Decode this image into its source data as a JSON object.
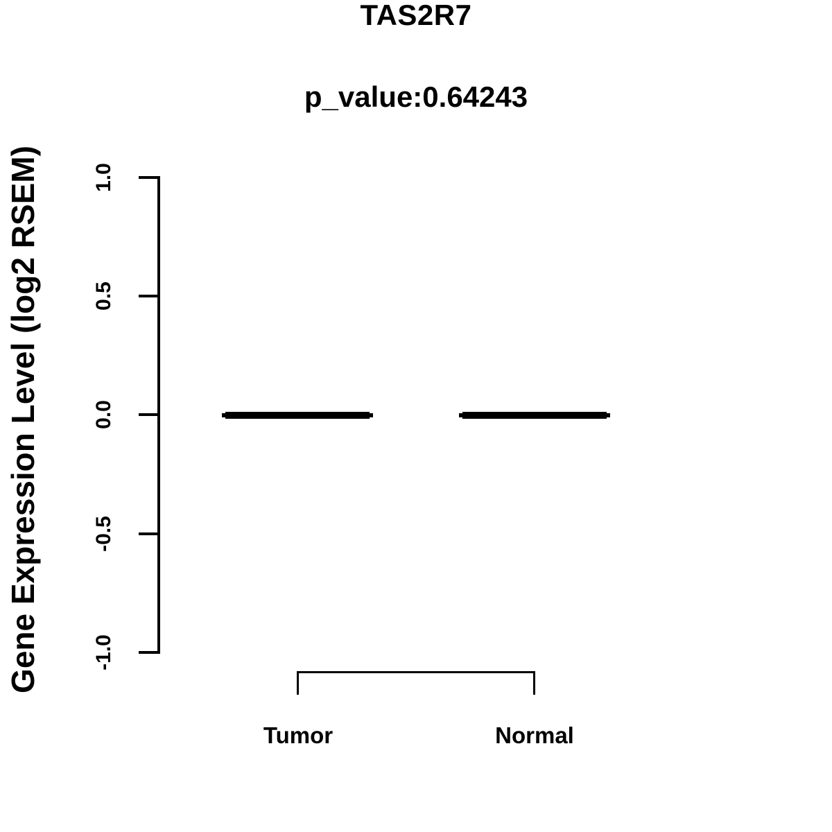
{
  "page": {
    "background_color": "#ffffff",
    "foreground_color": "#000000"
  },
  "chart_data": {
    "type": "boxplot",
    "title": "TAS2R7",
    "subtitle": "p_value:0.64243",
    "xlabel": "",
    "ylabel": "Gene Expression Level (log2 RSEM)",
    "categories": [
      "Tumor",
      "Normal"
    ],
    "series": [
      {
        "name": "Tumor",
        "median": 0.0,
        "q1": 0.0,
        "q3": 0.0,
        "whisker_low": 0.0,
        "whisker_high": 0.0
      },
      {
        "name": "Normal",
        "median": 0.0,
        "q1": 0.0,
        "q3": 0.0,
        "whisker_low": 0.0,
        "whisker_high": 0.0
      }
    ],
    "ylim": [
      -1.0,
      1.0
    ],
    "ytick_values": [
      1.0,
      0.5,
      0.0,
      -0.5,
      -1.0
    ],
    "ytick_labels": [
      "1.0",
      "0.5",
      "0.0",
      "-0.5",
      "-1.0"
    ],
    "grid": false,
    "legend_position": "none",
    "annotations": {
      "comparison_bracket": {
        "groups": [
          "Tumor",
          "Normal"
        ]
      }
    }
  }
}
